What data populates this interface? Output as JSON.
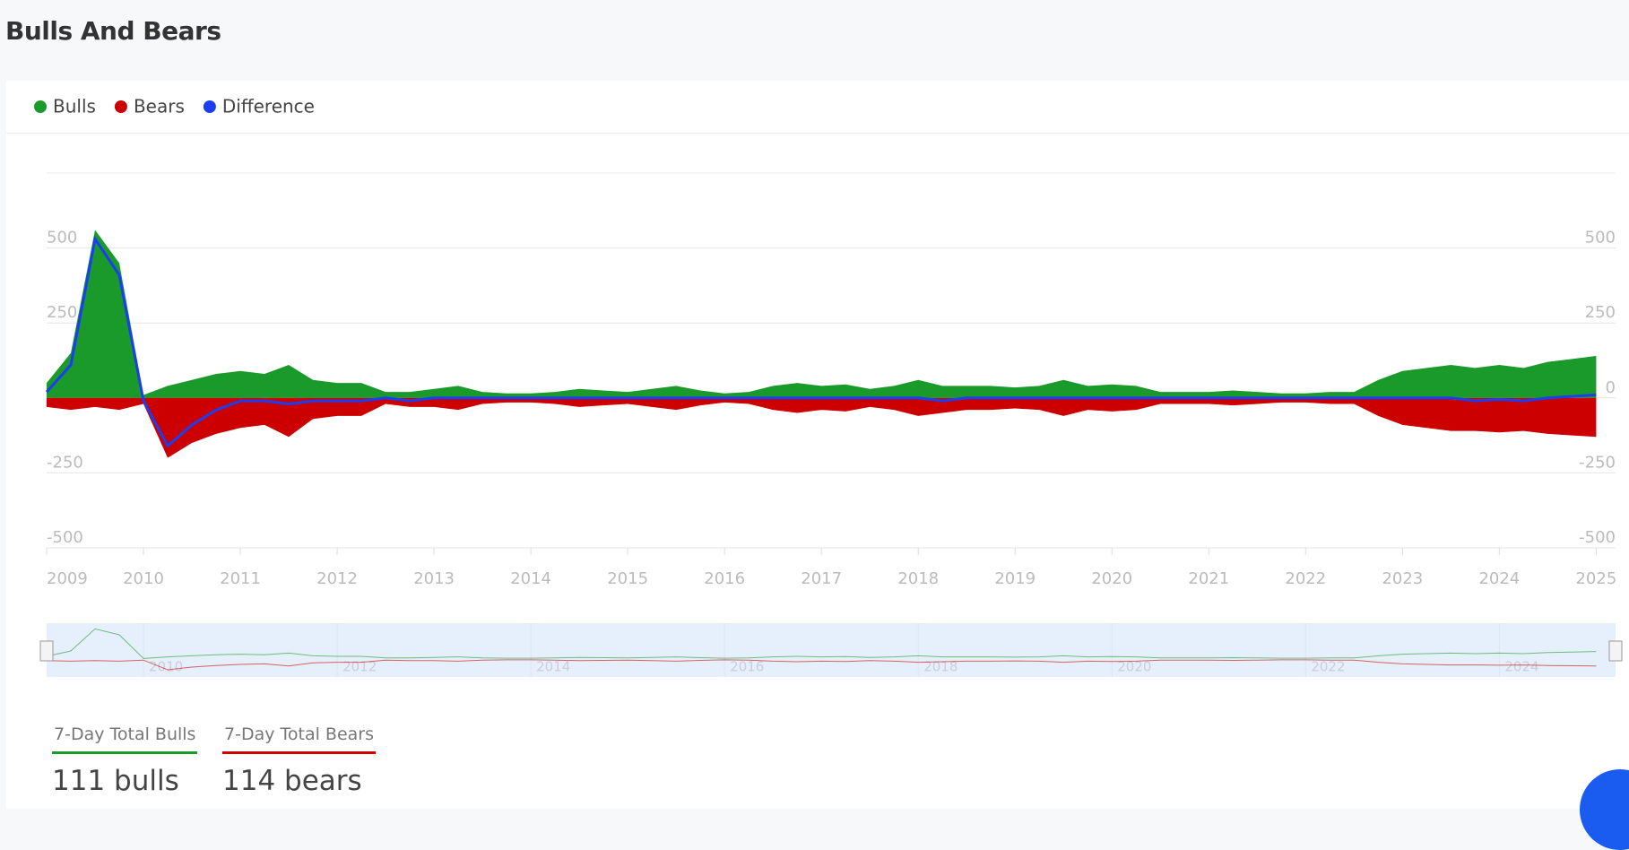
{
  "page_title": "Bulls And Bears",
  "chart_data": {
    "type": "area",
    "x": [
      2009,
      2009.25,
      2009.5,
      2009.75,
      2010,
      2010.25,
      2010.5,
      2010.75,
      2011,
      2011.25,
      2011.5,
      2011.75,
      2012,
      2012.25,
      2012.5,
      2012.75,
      2013,
      2013.25,
      2013.5,
      2013.75,
      2014,
      2014.25,
      2014.5,
      2014.75,
      2015,
      2015.25,
      2015.5,
      2015.75,
      2016,
      2016.25,
      2016.5,
      2016.75,
      2017,
      2017.25,
      2017.5,
      2017.75,
      2018,
      2018.25,
      2018.5,
      2018.75,
      2019,
      2019.25,
      2019.5,
      2019.75,
      2020,
      2020.25,
      2020.5,
      2020.75,
      2021,
      2021.25,
      2021.5,
      2021.75,
      2022,
      2022.25,
      2022.5,
      2022.75,
      2023,
      2023.25,
      2023.5,
      2023.75,
      2024,
      2024.25,
      2024.5,
      2024.75,
      2025
    ],
    "series": [
      {
        "name": "Bulls",
        "color": "#1a9a2a",
        "values": [
          50,
          150,
          560,
          450,
          10,
          40,
          60,
          80,
          90,
          80,
          110,
          60,
          50,
          50,
          20,
          20,
          30,
          40,
          20,
          15,
          15,
          20,
          30,
          25,
          20,
          30,
          40,
          25,
          15,
          20,
          40,
          50,
          40,
          45,
          30,
          40,
          60,
          40,
          40,
          40,
          35,
          40,
          60,
          40,
          45,
          40,
          20,
          20,
          20,
          25,
          20,
          15,
          15,
          20,
          20,
          60,
          90,
          100,
          110,
          100,
          110,
          100,
          120,
          130,
          140
        ]
      },
      {
        "name": "Bears",
        "color": "#cc0000",
        "values": [
          -30,
          -40,
          -30,
          -40,
          -20,
          -200,
          -150,
          -120,
          -100,
          -90,
          -130,
          -70,
          -60,
          -60,
          -20,
          -30,
          -30,
          -40,
          -20,
          -15,
          -15,
          -20,
          -30,
          -25,
          -20,
          -30,
          -40,
          -25,
          -15,
          -20,
          -40,
          -50,
          -40,
          -45,
          -30,
          -40,
          -60,
          -50,
          -40,
          -40,
          -35,
          -40,
          -60,
          -40,
          -45,
          -40,
          -20,
          -20,
          -20,
          -25,
          -20,
          -15,
          -15,
          -20,
          -20,
          -60,
          -90,
          -100,
          -110,
          -110,
          -115,
          -110,
          -120,
          -125,
          -130
        ]
      },
      {
        "name": "Difference",
        "color": "#1a3ff0",
        "values": [
          20,
          110,
          530,
          410,
          -10,
          -160,
          -90,
          -40,
          -10,
          -10,
          -20,
          -10,
          -10,
          -10,
          0,
          -10,
          0,
          0,
          0,
          0,
          0,
          0,
          0,
          0,
          0,
          0,
          0,
          0,
          0,
          0,
          0,
          0,
          0,
          0,
          0,
          0,
          0,
          -10,
          0,
          0,
          0,
          0,
          0,
          0,
          0,
          0,
          0,
          0,
          0,
          0,
          0,
          0,
          0,
          0,
          0,
          0,
          0,
          0,
          0,
          -10,
          -5,
          -10,
          0,
          5,
          10
        ]
      }
    ],
    "xlim": [
      2009,
      2025.2
    ],
    "xticks": [
      2009,
      2010,
      2011,
      2012,
      2013,
      2014,
      2015,
      2016,
      2017,
      2018,
      2019,
      2020,
      2021,
      2022,
      2023,
      2024,
      2025
    ],
    "ylim": [
      -500,
      750
    ],
    "yticks": [
      -500,
      -250,
      0,
      250,
      500
    ],
    "y2lim": [
      -500,
      750
    ],
    "y2ticks": [
      -500,
      -250,
      0,
      250,
      500
    ],
    "grid": true
  },
  "stats": [
    {
      "label": "7-Day Total Bulls",
      "value": "111 bulls",
      "color": "#1a9a2a"
    },
    {
      "label": "7-Day Total Bears",
      "value": "114 bears",
      "color": "#cc0000"
    }
  ]
}
